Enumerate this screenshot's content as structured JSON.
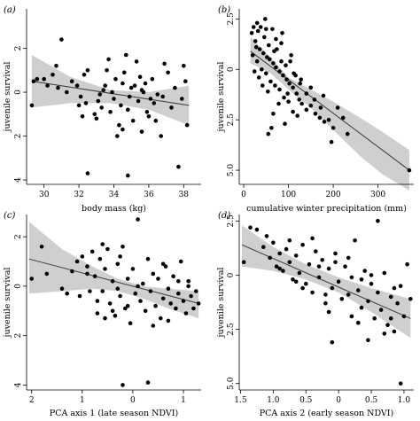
{
  "chart_data": [
    {
      "type": "scatter",
      "panel_label": "(a)",
      "xlabel": "body mass (kg)",
      "ylabel": "juvenile survival",
      "xlim": [
        29,
        39
      ],
      "ylim": [
        -3.8,
        4.2
      ],
      "xticks": [
        30,
        32,
        34,
        36,
        38
      ],
      "xtick_labels": [
        "30",
        "32",
        "34",
        "36",
        "38"
      ],
      "yticks": [
        -2,
        0,
        2,
        4
      ],
      "ytick_labels": [
        "2",
        "0",
        "2",
        "4"
      ],
      "fit": {
        "x": [
          29.3,
          38.3
        ],
        "y": [
          -0.5,
          0.6
        ]
      },
      "band": {
        "x": [
          29.3,
          31.5,
          33.8,
          36.0,
          38.3
        ],
        "lower": [
          -1.7,
          -0.7,
          -0.1,
          0.0,
          -0.3
        ],
        "upper": [
          0.7,
          0.5,
          0.5,
          0.8,
          1.5
        ]
      },
      "points": [
        [
          29.4,
          -0.5
        ],
        [
          29.6,
          -0.6
        ],
        [
          30.0,
          -0.6
        ],
        [
          30.2,
          -0.3
        ],
        [
          30.5,
          -0.8
        ],
        [
          30.7,
          -1.2
        ],
        [
          31.0,
          -2.4
        ],
        [
          29.3,
          0.6
        ],
        [
          31.6,
          -0.5
        ],
        [
          31.9,
          -0.3
        ],
        [
          32.1,
          0.2
        ],
        [
          32.3,
          -0.8
        ],
        [
          32.5,
          -1.0
        ],
        [
          32.2,
          1.1
        ],
        [
          32.4,
          0.5
        ],
        [
          32.5,
          3.7
        ],
        [
          32.9,
          1.0
        ],
        [
          33.0,
          1.2
        ],
        [
          33.1,
          0.4
        ],
        [
          33.2,
          0.1
        ],
        [
          33.4,
          -0.1
        ],
        [
          33.5,
          -0.3
        ],
        [
          33.6,
          -1.0
        ],
        [
          33.7,
          -1.5
        ],
        [
          33.9,
          0.0
        ],
        [
          34.0,
          0.3
        ],
        [
          34.1,
          -0.6
        ],
        [
          34.2,
          2.0
        ],
        [
          34.3,
          1.5
        ],
        [
          34.4,
          0.6
        ],
        [
          34.5,
          -0.4
        ],
        [
          34.6,
          -0.9
        ],
        [
          34.7,
          -1.7
        ],
        [
          34.8,
          0.8
        ],
        [
          34.9,
          0.2
        ],
        [
          35.0,
          -0.2
        ],
        [
          35.1,
          1.3
        ],
        [
          35.3,
          -1.4
        ],
        [
          35.4,
          0.4
        ],
        [
          35.5,
          -0.7
        ],
        [
          35.6,
          1.8
        ],
        [
          35.7,
          0.0
        ],
        [
          35.8,
          -0.4
        ],
        [
          35.9,
          0.9
        ],
        [
          36.0,
          1.1
        ],
        [
          36.1,
          0.3
        ],
        [
          36.2,
          -0.6
        ],
        [
          36.3,
          0.5
        ],
        [
          36.5,
          0.1
        ],
        [
          36.7,
          2.0
        ],
        [
          36.9,
          -1.3
        ],
        [
          37.1,
          -0.9
        ],
        [
          37.3,
          0.7
        ],
        [
          37.5,
          -0.2
        ],
        [
          37.7,
          3.4
        ],
        [
          37.9,
          0.3
        ],
        [
          38.0,
          -1.2
        ],
        [
          38.1,
          -0.5
        ],
        [
          38.2,
          1.5
        ],
        [
          32.0,
          0.6
        ],
        [
          33.3,
          0.7
        ],
        [
          34.5,
          1.7
        ],
        [
          35.2,
          -0.3
        ],
        [
          36.4,
          1.3
        ],
        [
          36.8,
          0.2
        ],
        [
          34.8,
          3.8
        ],
        [
          33.8,
          0.9
        ],
        [
          31.3,
          0.0
        ],
        [
          30.8,
          -0.2
        ],
        [
          35.6,
          -0.1
        ]
      ]
    },
    {
      "type": "scatter",
      "panel_label": "(b)",
      "xlabel": "cumulative winter precipitation (mm)",
      "ylabel": "juvenile survival",
      "xlim": [
        -10,
        380
      ],
      "ylim": [
        -3.0,
        5.7
      ],
      "xticks": [
        0,
        100,
        200,
        300
      ],
      "xtick_labels": [
        "0",
        "100",
        "200",
        "300"
      ],
      "yticks": [
        -2.5,
        0,
        2.5,
        5.0
      ],
      "ytick_labels": [
        "2.5",
        "0",
        "2.5",
        "5.0"
      ],
      "fit": {
        "x": [
          15,
          370
        ],
        "y": [
          -0.9,
          5.0
        ]
      },
      "band": {
        "x": [
          15,
          60,
          100,
          150,
          200,
          260,
          310,
          370
        ],
        "lower": [
          -1.6,
          -0.6,
          0.4,
          1.0,
          1.6,
          2.4,
          3.1,
          4.0
        ],
        "upper": [
          -0.3,
          0.2,
          1.0,
          1.9,
          3.0,
          4.3,
          5.2,
          6.0
        ]
      },
      "points": [
        [
          30,
          -2.3
        ],
        [
          48,
          -2.5
        ],
        [
          62,
          -3.3
        ],
        [
          84,
          -1.3
        ],
        [
          18,
          -1.8
        ],
        [
          26,
          -1.4
        ],
        [
          36,
          -1.0
        ],
        [
          44,
          -0.8
        ],
        [
          52,
          -0.6
        ],
        [
          58,
          -0.5
        ],
        [
          66,
          -0.3
        ],
        [
          72,
          -0.1
        ],
        [
          80,
          0.1
        ],
        [
          88,
          0.3
        ],
        [
          96,
          0.5
        ],
        [
          102,
          0.7
        ],
        [
          110,
          0.9
        ],
        [
          118,
          1.2
        ],
        [
          124,
          1.5
        ],
        [
          130,
          1.7
        ],
        [
          140,
          2.0
        ],
        [
          150,
          1.8
        ],
        [
          160,
          2.2
        ],
        [
          170,
          2.4
        ],
        [
          180,
          2.6
        ],
        [
          190,
          2.5
        ],
        [
          200,
          2.9
        ],
        [
          210,
          1.9
        ],
        [
          222,
          2.4
        ],
        [
          20,
          -0.7
        ],
        [
          30,
          -0.4
        ],
        [
          40,
          0.0
        ],
        [
          50,
          0.2
        ],
        [
          60,
          0.6
        ],
        [
          70,
          0.8
        ],
        [
          80,
          1.0
        ],
        [
          90,
          1.4
        ],
        [
          100,
          1.6
        ],
        [
          110,
          2.1
        ],
        [
          120,
          2.3
        ],
        [
          55,
          3.2
        ],
        [
          62,
          2.9
        ],
        [
          78,
          1.7
        ],
        [
          92,
          2.7
        ],
        [
          66,
          2.2
        ],
        [
          28,
          -1.1
        ],
        [
          38,
          -2.1
        ],
        [
          46,
          -1.6
        ],
        [
          56,
          -1.2
        ],
        [
          64,
          -2.0
        ],
        [
          72,
          -1.5
        ],
        [
          84,
          -0.4
        ],
        [
          94,
          -0.2
        ],
        [
          106,
          -0.7
        ],
        [
          116,
          0.3
        ],
        [
          126,
          0.7
        ],
        [
          24,
          0.1
        ],
        [
          34,
          0.4
        ],
        [
          42,
          0.8
        ],
        [
          54,
          1.1
        ],
        [
          68,
          -0.9
        ],
        [
          86,
          -1.8
        ],
        [
          98,
          1.2
        ],
        [
          140,
          1.2
        ],
        [
          158,
          1.5
        ],
        [
          172,
          1.9
        ],
        [
          196,
          3.6
        ],
        [
          232,
          3.2
        ],
        [
          370,
          5.0
        ],
        [
          22,
          -2.1
        ],
        [
          32,
          -1.9
        ],
        [
          50,
          -2.0
        ],
        [
          74,
          -1.0
        ],
        [
          104,
          -0.4
        ],
        [
          112,
          0.2
        ],
        [
          128,
          0.5
        ],
        [
          150,
          0.9
        ],
        [
          178,
          1.3
        ]
      ]
    },
    {
      "type": "scatter",
      "panel_label": "(c)",
      "xlabel": "PCA axis 1 (late season NDVI)",
      "ylabel": "juvenile survival",
      "xlim": [
        2.1,
        -1.35
      ],
      "ylim": [
        -2.9,
        4.2
      ],
      "xticks": [
        2,
        1,
        0,
        -1
      ],
      "xtick_labels": [
        "2",
        "1",
        "0",
        "1"
      ],
      "yticks": [
        -2,
        0,
        2,
        4
      ],
      "ytick_labels": [
        "2",
        "0",
        "2",
        "4"
      ],
      "fit": {
        "x": [
          2.05,
          -1.3
        ],
        "y": [
          -1.1,
          0.7
        ]
      },
      "band": {
        "x": [
          2.05,
          1.4,
          0.8,
          0.3,
          -0.2,
          -0.7,
          -1.3
        ],
        "lower": [
          -2.6,
          -1.5,
          -0.8,
          -0.3,
          0.0,
          0.1,
          0.2
        ],
        "upper": [
          0.3,
          0.2,
          0.1,
          0.2,
          0.5,
          0.9,
          1.3
        ]
      },
      "points": [
        [
          2.0,
          -0.3
        ],
        [
          1.8,
          -1.6
        ],
        [
          1.7,
          -0.5
        ],
        [
          1.4,
          0.1
        ],
        [
          1.3,
          0.3
        ],
        [
          1.2,
          -0.6
        ],
        [
          1.1,
          -1.0
        ],
        [
          1.05,
          0.4
        ],
        [
          1.0,
          -1.2
        ],
        [
          0.9,
          -0.8
        ],
        [
          0.85,
          0.2
        ],
        [
          0.8,
          -1.4
        ],
        [
          0.75,
          -0.4
        ],
        [
          0.7,
          0.6
        ],
        [
          0.65,
          -1.1
        ],
        [
          0.6,
          0.2
        ],
        [
          0.55,
          -0.7
        ],
        [
          0.5,
          -1.5
        ],
        [
          0.45,
          0.7
        ],
        [
          0.4,
          -0.2
        ],
        [
          0.35,
          1.2
        ],
        [
          0.3,
          -0.9
        ],
        [
          0.25,
          0.4
        ],
        [
          0.2,
          -1.6
        ],
        [
          0.15,
          0.9
        ],
        [
          0.1,
          -0.3
        ],
        [
          0.05,
          1.5
        ],
        [
          0.0,
          -0.7
        ],
        [
          -0.05,
          0.3
        ],
        [
          -0.1,
          -2.7
        ],
        [
          -0.15,
          0.6
        ],
        [
          -0.2,
          -0.1
        ],
        [
          -0.25,
          1.0
        ],
        [
          -0.3,
          -1.1
        ],
        [
          -0.35,
          0.2
        ],
        [
          -0.4,
          -0.5
        ],
        [
          -0.45,
          0.8
        ],
        [
          -0.5,
          -0.3
        ],
        [
          -0.55,
          1.3
        ],
        [
          -0.6,
          0.5
        ],
        [
          -0.65,
          -0.8
        ],
        [
          -0.7,
          0.1
        ],
        [
          -0.75,
          0.7
        ],
        [
          -0.8,
          -0.4
        ],
        [
          -0.85,
          0.9
        ],
        [
          -0.9,
          0.3
        ],
        [
          -0.95,
          -1.0
        ],
        [
          -1.0,
          0.6
        ],
        [
          -1.05,
          1.1
        ],
        [
          -1.1,
          0.0
        ],
        [
          -1.15,
          0.4
        ],
        [
          -1.2,
          0.9
        ],
        [
          -1.25,
          0.2
        ],
        [
          -1.3,
          0.7
        ],
        [
          -0.3,
          3.9
        ],
        [
          0.2,
          4.0
        ],
        [
          0.6,
          -1.7
        ],
        [
          0.9,
          -0.5
        ],
        [
          0.3,
          0.1
        ],
        [
          -0.1,
          0.0
        ],
        [
          -0.4,
          1.6
        ],
        [
          -0.7,
          1.4
        ],
        [
          -0.9,
          -0.2
        ],
        [
          0.4,
          1.0
        ],
        [
          0.7,
          1.1
        ],
        [
          0.1,
          0.8
        ],
        [
          -0.6,
          -0.9
        ],
        [
          -1.1,
          -0.2
        ],
        [
          0.55,
          1.3
        ],
        [
          0.25,
          -1.2
        ]
      ]
    },
    {
      "type": "scatter",
      "panel_label": "(d)",
      "xlabel": "PCA axis 2 (early season NDVI)",
      "ylabel": "juvenile survival",
      "xlim": [
        1.52,
        -1.15
      ],
      "ylim": [
        -2.8,
        5.3
      ],
      "xticks": [
        1.5,
        1.0,
        0.5,
        0,
        -0.5,
        -1.0
      ],
      "xtick_labels": [
        "1.5",
        "1.0",
        "0.5",
        "0",
        "0.5",
        "1.0"
      ],
      "yticks": [
        -2.5,
        0,
        2.5,
        5.0
      ],
      "ytick_labels": [
        "2.5",
        "0",
        "2.5",
        "5.0"
      ],
      "fit": {
        "x": [
          1.48,
          -1.1
        ],
        "y": [
          -1.4,
          2.0
        ]
      },
      "band": {
        "x": [
          1.48,
          1.0,
          0.5,
          0.0,
          -0.5,
          -1.1
        ],
        "lower": [
          -2.3,
          -1.3,
          -0.5,
          0.1,
          0.6,
          1.1
        ],
        "upper": [
          -0.4,
          -0.2,
          0.2,
          0.8,
          1.7,
          2.9
        ]
      },
      "points": [
        [
          1.45,
          -0.6
        ],
        [
          1.35,
          -2.2
        ],
        [
          1.25,
          -2.1
        ],
        [
          1.15,
          -1.3
        ],
        [
          1.05,
          -0.8
        ],
        [
          1.0,
          -1.5
        ],
        [
          0.95,
          -0.4
        ],
        [
          0.9,
          -1.0
        ],
        [
          0.85,
          -0.2
        ],
        [
          0.8,
          -1.2
        ],
        [
          0.75,
          -0.6
        ],
        [
          0.7,
          0.2
        ],
        [
          0.65,
          -0.9
        ],
        [
          0.6,
          -0.1
        ],
        [
          0.55,
          -1.4
        ],
        [
          0.5,
          0.4
        ],
        [
          0.45,
          -0.5
        ],
        [
          0.4,
          0.8
        ],
        [
          0.35,
          -1.1
        ],
        [
          0.3,
          0.1
        ],
        [
          0.25,
          -0.7
        ],
        [
          0.2,
          1.3
        ],
        [
          0.15,
          -0.3
        ],
        [
          0.1,
          0.6
        ],
        [
          0.05,
          -1.0
        ],
        [
          0.0,
          0.3
        ],
        [
          -0.05,
          1.1
        ],
        [
          -0.1,
          -0.4
        ],
        [
          -0.15,
          0.9
        ],
        [
          -0.2,
          0.1
        ],
        [
          -0.25,
          -1.6
        ],
        [
          -0.3,
          0.7
        ],
        [
          -0.35,
          1.5
        ],
        [
          -0.4,
          -0.2
        ],
        [
          -0.45,
          1.2
        ],
        [
          -0.5,
          0.4
        ],
        [
          -0.55,
          2.0
        ],
        [
          -0.6,
          0.8
        ],
        [
          -0.65,
          1.6
        ],
        [
          -0.7,
          -0.1
        ],
        [
          -0.75,
          2.3
        ],
        [
          -0.8,
          1.0
        ],
        [
          -0.85,
          2.6
        ],
        [
          -0.9,
          1.3
        ],
        [
          -0.95,
          0.5
        ],
        [
          -1.0,
          1.9
        ],
        [
          -1.05,
          -0.5
        ],
        [
          -1.1,
          1.1
        ],
        [
          -0.95,
          5.0
        ],
        [
          -0.45,
          3.0
        ],
        [
          -0.3,
          2.2
        ],
        [
          -0.6,
          -2.5
        ],
        [
          0.1,
          3.1
        ],
        [
          0.9,
          -0.3
        ],
        [
          0.55,
          0.6
        ],
        [
          0.15,
          1.7
        ],
        [
          -0.15,
          -0.8
        ],
        [
          -0.5,
          0.0
        ],
        [
          -0.8,
          2.0
        ],
        [
          0.3,
          -0.4
        ],
        [
          0.65,
          0.3
        ],
        [
          -0.2,
          1.9
        ],
        [
          -0.7,
          2.7
        ],
        [
          0.4,
          -1.7
        ],
        [
          0.75,
          -1.6
        ],
        [
          0.05,
          -0.6
        ],
        [
          -0.35,
          0.2
        ],
        [
          -0.85,
          0.6
        ],
        [
          1.1,
          -1.8
        ],
        [
          0.2,
          0.9
        ]
      ]
    }
  ]
}
